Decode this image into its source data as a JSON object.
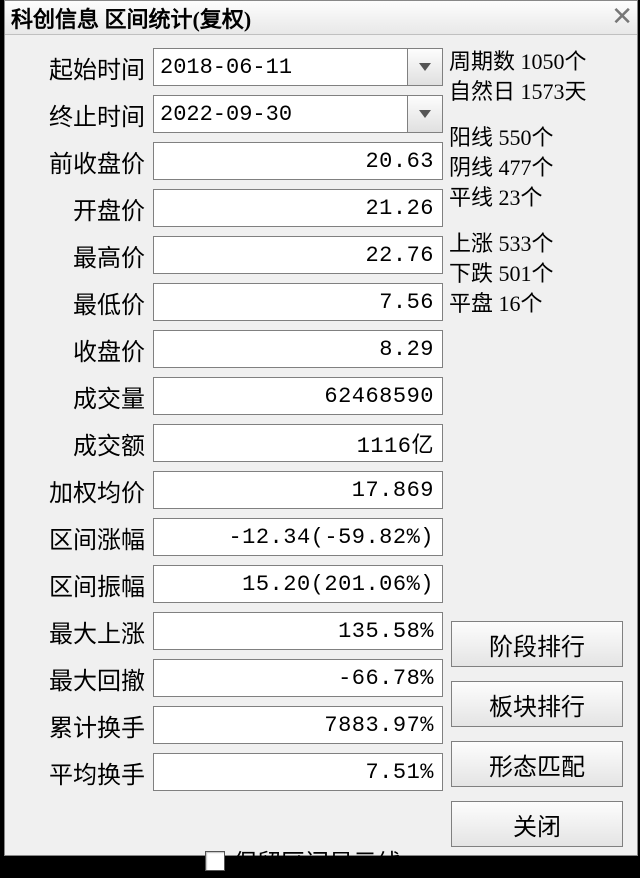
{
  "title": "科创信息 区间统计(复权)",
  "dates": {
    "start_label": "起始时间",
    "start_value": "2018-06-11",
    "end_label": "终止时间",
    "end_value": "2022-09-30"
  },
  "fields": [
    {
      "label": "前收盘价",
      "value": "20.63"
    },
    {
      "label": "开盘价",
      "value": "21.26"
    },
    {
      "label": "最高价",
      "value": "22.76"
    },
    {
      "label": "最低价",
      "value": "7.56"
    },
    {
      "label": "收盘价",
      "value": "8.29"
    },
    {
      "label": "成交量",
      "value": "62468590"
    },
    {
      "label": "成交额",
      "value": "1116亿"
    },
    {
      "label": "加权均价",
      "value": "17.869"
    },
    {
      "label": "区间涨幅",
      "value": "-12.34(-59.82%)"
    },
    {
      "label": "区间振幅",
      "value": "15.20(201.06%)"
    },
    {
      "label": "最大上涨",
      "value": "135.58%"
    },
    {
      "label": "最大回撤",
      "value": "-66.78%"
    },
    {
      "label": "累计换手",
      "value": "7883.97%"
    },
    {
      "label": "平均换手",
      "value": "7.51%"
    }
  ],
  "stats": {
    "periods_label": "周期数",
    "periods_value": "1050个",
    "days_label": "自然日",
    "days_value": "1573天",
    "yang_label": "阳线",
    "yang_value": "550个",
    "yin_label": "阴线",
    "yin_value": "477个",
    "ping_label": "平线",
    "ping_value": "23个",
    "up_label": "上涨",
    "up_value": "533个",
    "down_label": "下跌",
    "down_value": "501个",
    "flat_label": "平盘",
    "flat_value": "16个"
  },
  "buttons": {
    "stage_rank": "阶段排行",
    "sector_rank": "板块排行",
    "pattern_match": "形态匹配",
    "close": "关闭"
  },
  "checkbox_label": "保留区间显示线"
}
